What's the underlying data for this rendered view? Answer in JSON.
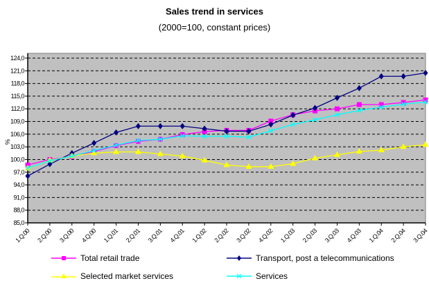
{
  "chart_data": {
    "type": "line",
    "title": "Sales trend in services",
    "subtitle": "(2000=100, constant prices)",
    "xlabel": "",
    "ylabel": "%",
    "ylim": [
      85,
      124
    ],
    "yticks": [
      "85,0",
      "88,0",
      "91,0",
      "94,0",
      "97,0",
      "100,0",
      "103,0",
      "106,0",
      "109,0",
      "112,0",
      "115,0",
      "118,0",
      "121,0",
      "124,0"
    ],
    "ytick_values": [
      85,
      88,
      91,
      94,
      97,
      100,
      103,
      106,
      109,
      112,
      115,
      118,
      121,
      124
    ],
    "grid": true,
    "legend_position": "bottom",
    "categories": [
      "1.Q.00",
      "2.Q.00",
      "3.Q.00",
      "4.Q.00",
      "1.Q.01",
      "2.Q.01",
      "3.Q.01",
      "4.Q.01",
      "1.Q.02",
      "2.Q.02",
      "3.Q.02",
      "4.Q.02",
      "1.Q.03",
      "2.Q.03",
      "3.Q.03",
      "4.Q.03",
      "1.Q.04",
      "2.Q.04",
      "3.Q.04"
    ],
    "series": [
      {
        "name": "Total retail trade",
        "color": "#ff00ff",
        "marker": "square",
        "values": [
          98.7,
          100.0,
          100.7,
          101.9,
          103.3,
          104.3,
          104.8,
          105.9,
          106.6,
          106.9,
          106.9,
          109.1,
          110.6,
          111.5,
          112.0,
          113.0,
          113.0,
          113.5,
          114.1
        ]
      },
      {
        "name": "Transport, post a telecommunications",
        "color": "#000080",
        "marker": "diamond",
        "values": [
          96.1,
          98.9,
          101.5,
          103.9,
          106.4,
          107.9,
          107.9,
          107.9,
          107.3,
          106.7,
          106.7,
          108.3,
          110.5,
          112.2,
          114.6,
          116.9,
          119.7,
          119.7,
          120.5
        ]
      },
      {
        "name": "Selected market services",
        "color": "#ffff00",
        "marker": "triangle",
        "values": [
          97.9,
          99.8,
          100.8,
          101.5,
          101.8,
          101.8,
          101.3,
          100.8,
          99.8,
          98.7,
          98.3,
          98.3,
          99.0,
          100.3,
          101.1,
          101.9,
          102.2,
          103.0,
          103.5
        ]
      },
      {
        "name": "Services",
        "color": "#00ffff",
        "marker": "x",
        "values": [
          98.0,
          99.7,
          100.8,
          102.1,
          103.4,
          104.5,
          104.8,
          105.6,
          105.5,
          105.5,
          105.3,
          106.8,
          108.3,
          109.4,
          110.6,
          111.6,
          112.4,
          113.1,
          113.6
        ]
      }
    ],
    "plot_background": "#c0c0c0"
  }
}
